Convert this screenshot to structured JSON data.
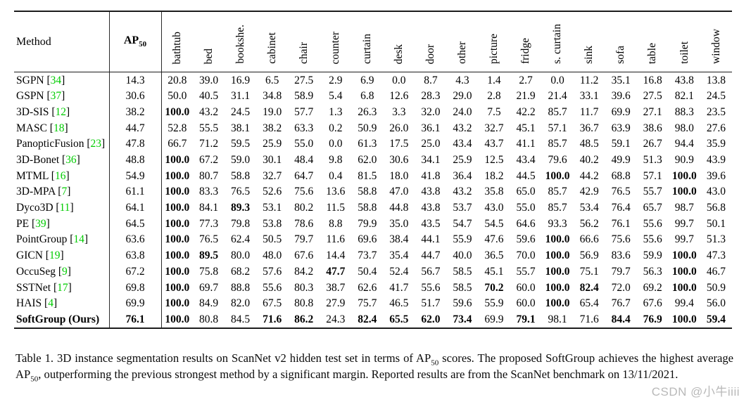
{
  "table": {
    "header": {
      "method_label": "Method",
      "ap_label": "AP",
      "ap_sub": "50"
    },
    "class_headers": [
      "bathtub",
      "bed",
      "bookshe.",
      "cabinet",
      "chair",
      "counter",
      "curtain",
      "desk",
      "door",
      "other",
      "picture",
      "fridge",
      "s. curtain",
      "sink",
      "sofa",
      "table",
      "toilet",
      "window"
    ],
    "rows": [
      {
        "method": "SGPN",
        "cite": "34",
        "method_bold": false,
        "values": [
          "14.3",
          "20.8",
          "39.0",
          "16.9",
          "6.5",
          "27.5",
          "2.9",
          "6.9",
          "0.0",
          "8.7",
          "4.3",
          "1.4",
          "2.7",
          "0.0",
          "11.2",
          "35.1",
          "16.8",
          "43.8",
          "13.8"
        ],
        "bold": []
      },
      {
        "method": "GSPN",
        "cite": "37",
        "method_bold": false,
        "values": [
          "30.6",
          "50.0",
          "40.5",
          "31.1",
          "34.8",
          "58.9",
          "5.4",
          "6.8",
          "12.6",
          "28.3",
          "29.0",
          "2.8",
          "21.9",
          "21.4",
          "33.1",
          "39.6",
          "27.5",
          "82.1",
          "24.5"
        ],
        "bold": []
      },
      {
        "method": "3D-SIS",
        "cite": "12",
        "method_bold": false,
        "values": [
          "38.2",
          "100.0",
          "43.2",
          "24.5",
          "19.0",
          "57.7",
          "1.3",
          "26.3",
          "3.3",
          "32.0",
          "24.0",
          "7.5",
          "42.2",
          "85.7",
          "11.7",
          "69.9",
          "27.1",
          "88.3",
          "23.5"
        ],
        "bold": [
          1
        ]
      },
      {
        "method": "MASC",
        "cite": "18",
        "method_bold": false,
        "values": [
          "44.7",
          "52.8",
          "55.5",
          "38.1",
          "38.2",
          "63.3",
          "0.2",
          "50.9",
          "26.0",
          "36.1",
          "43.2",
          "32.7",
          "45.1",
          "57.1",
          "36.7",
          "63.9",
          "38.6",
          "98.0",
          "27.6"
        ],
        "bold": []
      },
      {
        "method": "PanopticFusion",
        "cite": "23",
        "method_bold": false,
        "values": [
          "47.8",
          "66.7",
          "71.2",
          "59.5",
          "25.9",
          "55.0",
          "0.0",
          "61.3",
          "17.5",
          "25.0",
          "43.4",
          "43.7",
          "41.1",
          "85.7",
          "48.5",
          "59.1",
          "26.7",
          "94.4",
          "35.9"
        ],
        "bold": []
      },
      {
        "method": "3D-Bonet",
        "cite": "36",
        "method_bold": false,
        "values": [
          "48.8",
          "100.0",
          "67.2",
          "59.0",
          "30.1",
          "48.4",
          "9.8",
          "62.0",
          "30.6",
          "34.1",
          "25.9",
          "12.5",
          "43.4",
          "79.6",
          "40.2",
          "49.9",
          "51.3",
          "90.9",
          "43.9"
        ],
        "bold": [
          1
        ]
      },
      {
        "method": "MTML",
        "cite": "16",
        "method_bold": false,
        "values": [
          "54.9",
          "100.0",
          "80.7",
          "58.8",
          "32.7",
          "64.7",
          "0.4",
          "81.5",
          "18.0",
          "41.8",
          "36.4",
          "18.2",
          "44.5",
          "100.0",
          "44.2",
          "68.8",
          "57.1",
          "100.0",
          "39.6"
        ],
        "bold": [
          1,
          13,
          17
        ]
      },
      {
        "method": "3D-MPA",
        "cite": "7",
        "method_bold": false,
        "values": [
          "61.1",
          "100.0",
          "83.3",
          "76.5",
          "52.6",
          "75.6",
          "13.6",
          "58.8",
          "47.0",
          "43.8",
          "43.2",
          "35.8",
          "65.0",
          "85.7",
          "42.9",
          "76.5",
          "55.7",
          "100.0",
          "43.0"
        ],
        "bold": [
          1,
          17
        ]
      },
      {
        "method": "Dyco3D",
        "cite": "11",
        "method_bold": false,
        "values": [
          "64.1",
          "100.0",
          "84.1",
          "89.3",
          "53.1",
          "80.2",
          "11.5",
          "58.8",
          "44.8",
          "43.8",
          "53.7",
          "43.0",
          "55.0",
          "85.7",
          "53.4",
          "76.4",
          "65.7",
          "98.7",
          "56.8"
        ],
        "bold": [
          1,
          3
        ]
      },
      {
        "method": "PE",
        "cite": "39",
        "method_bold": false,
        "values": [
          "64.5",
          "100.0",
          "77.3",
          "79.8",
          "53.8",
          "78.6",
          "8.8",
          "79.9",
          "35.0",
          "43.5",
          "54.7",
          "54.5",
          "64.6",
          "93.3",
          "56.2",
          "76.1",
          "55.6",
          "99.7",
          "50.1"
        ],
        "bold": [
          1
        ]
      },
      {
        "method": "PointGroup",
        "cite": "14",
        "method_bold": false,
        "values": [
          "63.6",
          "100.0",
          "76.5",
          "62.4",
          "50.5",
          "79.7",
          "11.6",
          "69.6",
          "38.4",
          "44.1",
          "55.9",
          "47.6",
          "59.6",
          "100.0",
          "66.6",
          "75.6",
          "55.6",
          "99.7",
          "51.3"
        ],
        "bold": [
          1,
          13
        ]
      },
      {
        "method": "GICN",
        "cite": "19",
        "method_bold": false,
        "values": [
          "63.8",
          "100.0",
          "89.5",
          "80.0",
          "48.0",
          "67.6",
          "14.4",
          "73.7",
          "35.4",
          "44.7",
          "40.0",
          "36.5",
          "70.0",
          "100.0",
          "56.9",
          "83.6",
          "59.9",
          "100.0",
          "47.3"
        ],
        "bold": [
          1,
          2,
          13,
          17
        ]
      },
      {
        "method": "OccuSeg",
        "cite": "9",
        "method_bold": false,
        "values": [
          "67.2",
          "100.0",
          "75.8",
          "68.2",
          "57.6",
          "84.2",
          "47.7",
          "50.4",
          "52.4",
          "56.7",
          "58.5",
          "45.1",
          "55.7",
          "100.0",
          "75.1",
          "79.7",
          "56.3",
          "100.0",
          "46.7"
        ],
        "bold": [
          1,
          6,
          13,
          17
        ]
      },
      {
        "method": "SSTNet",
        "cite": "17",
        "method_bold": false,
        "values": [
          "69.8",
          "100.0",
          "69.7",
          "88.8",
          "55.6",
          "80.3",
          "38.7",
          "62.6",
          "41.7",
          "55.6",
          "58.5",
          "70.2",
          "60.0",
          "100.0",
          "82.4",
          "72.0",
          "69.2",
          "100.0",
          "50.9"
        ],
        "bold": [
          1,
          11,
          13,
          14,
          17
        ]
      },
      {
        "method": "HAIS",
        "cite": "4",
        "method_bold": false,
        "values": [
          "69.9",
          "100.0",
          "84.9",
          "82.0",
          "67.5",
          "80.8",
          "27.9",
          "75.7",
          "46.5",
          "51.7",
          "59.6",
          "55.9",
          "60.0",
          "100.0",
          "65.4",
          "76.7",
          "67.6",
          "99.4",
          "56.0"
        ],
        "bold": [
          1,
          13
        ]
      },
      {
        "method": "SoftGroup (Ours)",
        "cite": "",
        "method_bold": true,
        "values": [
          "76.1",
          "100.0",
          "80.8",
          "84.5",
          "71.6",
          "86.2",
          "24.3",
          "82.4",
          "65.5",
          "62.0",
          "73.4",
          "69.9",
          "79.1",
          "98.1",
          "71.6",
          "84.4",
          "76.9",
          "100.0",
          "59.4"
        ],
        "bold": [
          0,
          1,
          4,
          5,
          7,
          8,
          9,
          10,
          12,
          15,
          16,
          17,
          18
        ]
      }
    ]
  },
  "caption": {
    "parts": [
      {
        "text": "Table 1.  3D instance segmentation results on ScanNet v2 hidden test set in terms of AP",
        "sub": false
      },
      {
        "text": "50",
        "sub": true
      },
      {
        "text": " scores.  The proposed SoftGroup achieves the highest average AP",
        "sub": false
      },
      {
        "text": "50",
        "sub": true
      },
      {
        "text": ", outperforming the previous strongest method by a significant margin.  Reported results are from the ScanNet benchmark on 13/11/2021.",
        "sub": false
      }
    ]
  },
  "watermark": "CSDN @小牛iiii",
  "colors": {
    "citation_green": "#00CC00",
    "text": "#000000",
    "watermark_gray": "#b9b9b9"
  }
}
